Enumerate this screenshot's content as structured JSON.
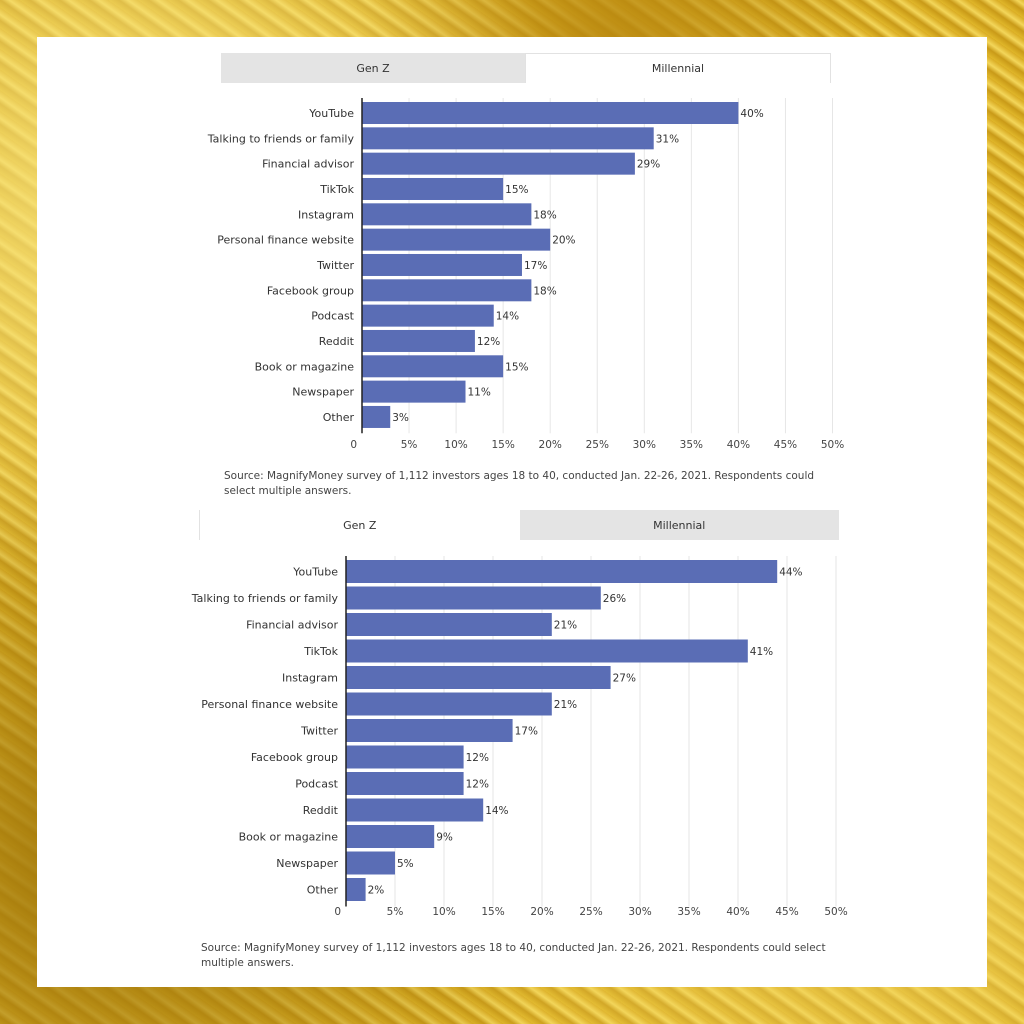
{
  "chart_data": [
    {
      "type": "bar",
      "orientation": "horizontal",
      "tabs": [
        "Gen Z",
        "Millennial"
      ],
      "active_tab": "Millennial",
      "categories": [
        "YouTube",
        "Talking to friends or family",
        "Financial advisor",
        "TikTok",
        "Instagram",
        "Personal finance website",
        "Twitter",
        "Facebook group",
        "Podcast",
        "Reddit",
        "Book or magazine",
        "Newspaper",
        "Other"
      ],
      "values": [
        40,
        31,
        29,
        15,
        18,
        20,
        17,
        18,
        14,
        12,
        15,
        11,
        3
      ],
      "value_labels": [
        "40%",
        "31%",
        "29%",
        "15%",
        "18%",
        "20%",
        "17%",
        "18%",
        "14%",
        "12%",
        "15%",
        "11%",
        "3%"
      ],
      "xticks": [
        "0",
        "5%",
        "10%",
        "15%",
        "20%",
        "25%",
        "30%",
        "35%",
        "40%",
        "45%",
        "50%"
      ],
      "xlim": [
        0,
        50
      ],
      "grid": true,
      "source": "Source: MagnifyMoney survey of 1,112 investors ages 18 to 40, conducted Jan. 22-26, 2021. Respondents could select multiple answers.",
      "bar_color": "#5a6db5"
    },
    {
      "type": "bar",
      "orientation": "horizontal",
      "tabs": [
        "Gen Z",
        "Millennial"
      ],
      "active_tab": "Gen Z",
      "categories": [
        "YouTube",
        "Talking to friends or family",
        "Financial advisor",
        "TikTok",
        "Instagram",
        "Personal finance website",
        "Twitter",
        "Facebook group",
        "Podcast",
        "Reddit",
        "Book or magazine",
        "Newspaper",
        "Other"
      ],
      "values": [
        44,
        26,
        21,
        41,
        27,
        21,
        17,
        12,
        12,
        14,
        9,
        5,
        2
      ],
      "value_labels": [
        "44%",
        "26%",
        "21%",
        "41%",
        "27%",
        "21%",
        "17%",
        "12%",
        "12%",
        "14%",
        "9%",
        "5%",
        "2%"
      ],
      "xticks": [
        "0",
        "5%",
        "10%",
        "15%",
        "20%",
        "25%",
        "30%",
        "35%",
        "40%",
        "45%",
        "50%"
      ],
      "xlim": [
        0,
        50
      ],
      "grid": true,
      "source": "Source: MagnifyMoney survey of 1,112 investors ages 18 to 40, conducted Jan. 22-26, 2021. Respondents could select multiple answers.",
      "bar_color": "#5a6db5"
    }
  ]
}
